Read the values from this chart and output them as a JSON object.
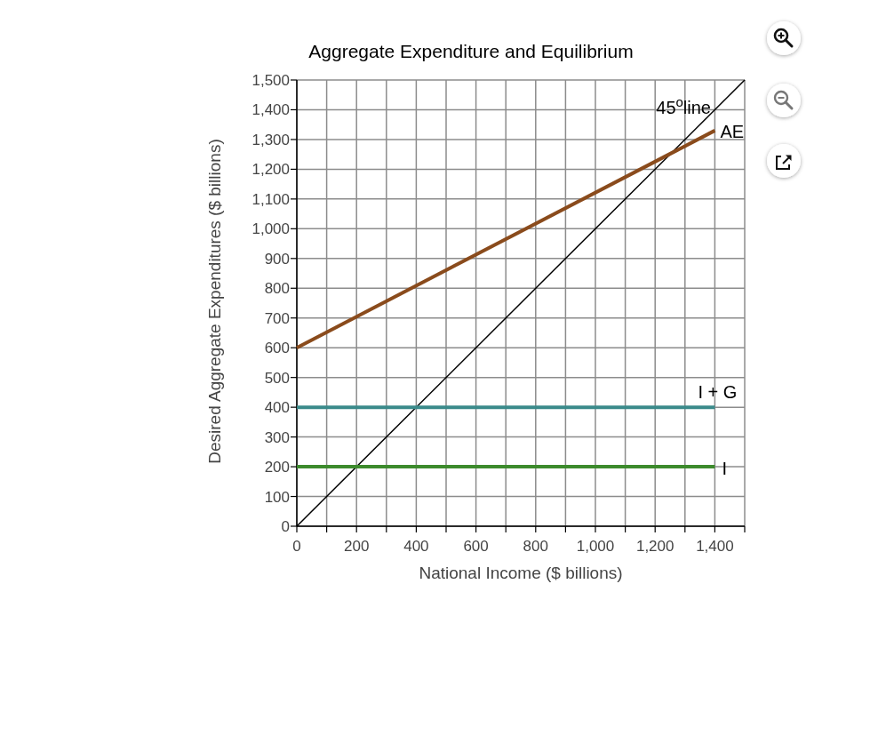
{
  "chart_data": {
    "type": "line",
    "title": "Aggregate Expenditure and Equilibrium",
    "xlabel": "National Income ($ billions)",
    "ylabel": "Desired Aggregate Expenditures ($ billions)",
    "xlim": [
      0,
      1500
    ],
    "ylim": [
      0,
      1500
    ],
    "xticks": [
      0,
      {
        "value": 100,
        "label": null
      },
      200,
      {
        "value": 300,
        "label": null
      },
      400,
      {
        "value": 500,
        "label": null
      },
      600,
      {
        "value": 700,
        "label": null
      },
      800,
      {
        "value": 900,
        "label": null
      },
      {
        "value": 1000,
        "label": "1,000"
      },
      {
        "value": 1100,
        "label": null
      },
      {
        "value": 1200,
        "label": "1,200"
      },
      {
        "value": 1300,
        "label": null
      },
      {
        "value": 1400,
        "label": "1,400"
      },
      {
        "value": 1500,
        "label": null
      }
    ],
    "yticks": [
      0,
      100,
      200,
      300,
      400,
      500,
      600,
      700,
      800,
      900,
      {
        "value": 1000,
        "label": "1,000"
      },
      {
        "value": 1100,
        "label": "1,100"
      },
      {
        "value": 1200,
        "label": "1,200"
      },
      {
        "value": 1300,
        "label": "1,300"
      },
      {
        "value": 1400,
        "label": "1,400"
      },
      {
        "value": 1500,
        "label": "1,500"
      }
    ],
    "grid": true,
    "marker": "none",
    "line_style": "solid",
    "series": [
      {
        "name": "45$^{o}$line",
        "color": "#000000",
        "x": [
          0,
          1500
        ],
        "values": [
          0,
          1500
        ]
      },
      {
        "name": "AE",
        "color": "#8a4b1c",
        "x": [
          0,
          1400
        ],
        "values": [
          600,
          1330
        ]
      },
      {
        "name": "I + G",
        "color": "#3a8a8a",
        "x": [
          0,
          1400
        ],
        "values": [
          400,
          400
        ]
      },
      {
        "name": "I",
        "color": "#3c8a2c",
        "x": [
          0,
          1400
        ],
        "values": [
          200,
          200
        ]
      }
    ]
  }
}
